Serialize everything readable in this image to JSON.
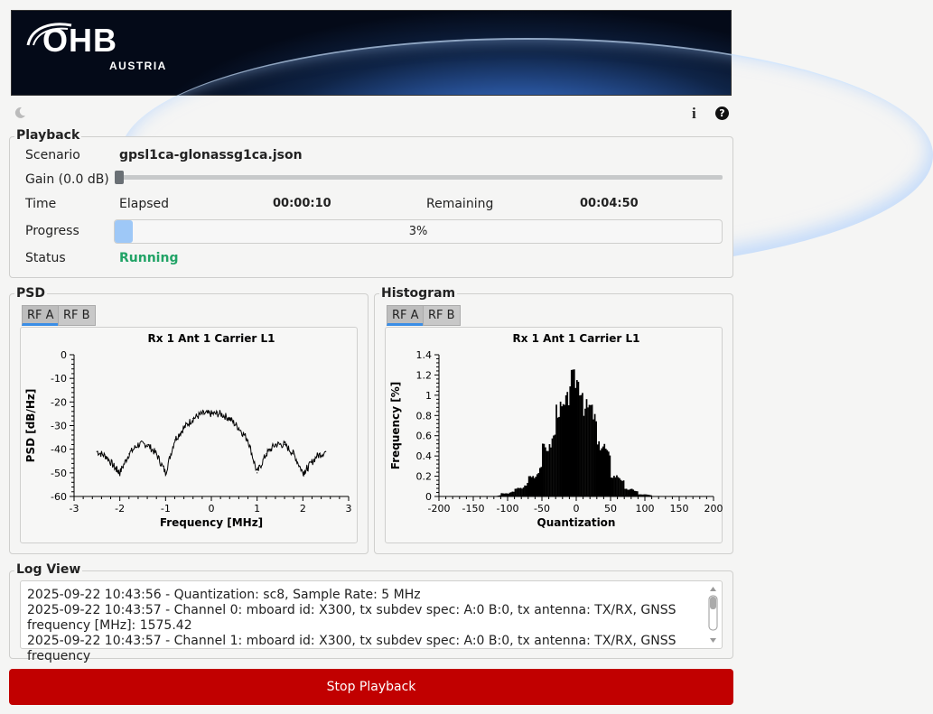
{
  "banner": {
    "logo": "OHB",
    "logo_sub": "AUSTRIA"
  },
  "toolbar": {
    "theme_icon": "moon-icon",
    "info_icon": "info-icon",
    "help_icon": "help-icon",
    "info_glyph": "i",
    "help_glyph": "?"
  },
  "playback": {
    "title": "Playback",
    "scenario_label": "Scenario",
    "scenario_value": "gpsl1ca-glonassg1ca.json",
    "gain_label": "Gain (0.0 dB)",
    "gain_value": 0.0,
    "time_label": "Time",
    "elapsed_label": "Elapsed",
    "elapsed_value": "00:00:10",
    "remaining_label": "Remaining",
    "remaining_value": "00:04:50",
    "progress_label": "Progress",
    "progress_text": "3%",
    "progress_fraction": 0.03,
    "status_label": "Status",
    "status_value": "Running",
    "status_color": "#21a366"
  },
  "psd": {
    "title": "PSD",
    "tabs": [
      "RF A",
      "RF B"
    ],
    "active_tab": "RF A",
    "chart_title": "Rx 1 Ant 1 Carrier L1",
    "xlabel": "Frequency [MHz]",
    "ylabel": "PSD [dB/Hz]"
  },
  "histogram": {
    "title": "Histogram",
    "tabs": [
      "RF A",
      "RF B"
    ],
    "active_tab": "RF A",
    "chart_title": "Rx 1 Ant 1 Carrier L1",
    "xlabel": "Quantization",
    "ylabel": "Frequency [%]"
  },
  "chart_data": [
    {
      "type": "line",
      "title": "Rx 1 Ant 1 Carrier L1",
      "xlabel": "Frequency [MHz]",
      "ylabel": "PSD [dB/Hz]",
      "xlim": [
        -3,
        3
      ],
      "ylim": [
        -60,
        0
      ],
      "xticks": [
        "-3",
        "-2",
        "-1",
        "0",
        "1",
        "2",
        "3"
      ],
      "yticks": [
        "0",
        "-10",
        "-20",
        "-30",
        "-40",
        "-50",
        "-60"
      ],
      "series": [
        {
          "x": [
            -2.5,
            -2.3,
            -2.1,
            -2.0,
            -1.8,
            -1.6,
            -1.4,
            -1.2,
            -1.0,
            -0.8,
            -0.6,
            -0.4,
            -0.2,
            0.0,
            0.2,
            0.4,
            0.6,
            0.8,
            1.0,
            1.2,
            1.4,
            1.6,
            1.8,
            2.0,
            2.1,
            2.3,
            2.5
          ],
          "y": [
            -41,
            -43,
            -48,
            -50,
            -42,
            -38,
            -38,
            -42,
            -50,
            -36,
            -31,
            -27,
            -25,
            -25,
            -25,
            -27,
            -31,
            -36,
            -50,
            -42,
            -38,
            -38,
            -42,
            -50,
            -48,
            -43,
            -41
          ]
        }
      ]
    },
    {
      "type": "bar",
      "title": "Rx 1 Ant 1 Carrier L1",
      "xlabel": "Quantization",
      "ylabel": "Frequency [%]",
      "xlim": [
        -200,
        200
      ],
      "ylim": [
        0,
        1.4
      ],
      "xticks": [
        "-200",
        "-150",
        "-100",
        "-50",
        "0",
        "50",
        "100",
        "150",
        "200"
      ],
      "yticks": [
        "1.4",
        "1.2",
        "1",
        "0.8",
        "0.6",
        "0.4",
        "0.2",
        "0"
      ],
      "x": [
        -120,
        -100,
        -80,
        -60,
        -40,
        -20,
        0,
        20,
        40,
        60,
        80,
        100,
        120
      ],
      "values": [
        0.0,
        0.03,
        0.08,
        0.2,
        0.48,
        0.86,
        1.15,
        0.88,
        0.5,
        0.2,
        0.07,
        0.02,
        0.0
      ]
    }
  ],
  "log": {
    "title": "Log View",
    "lines": [
      "2025-09-22 10:43:56 - Quantization: sc8, Sample Rate: 5 MHz",
      "2025-09-22 10:43:57 - Channel 0: mboard id: X300, tx subdev spec: A:0 B:0, tx antenna: TX/RX, GNSS frequency [MHz]: 1575.42",
      "2025-09-22 10:43:57 - Channel 1: mboard id: X300, tx subdev spec: A:0 B:0, tx antenna: TX/RX, GNSS frequency"
    ]
  },
  "stop_button": {
    "label": "Stop Playback",
    "color": "#c10000"
  }
}
